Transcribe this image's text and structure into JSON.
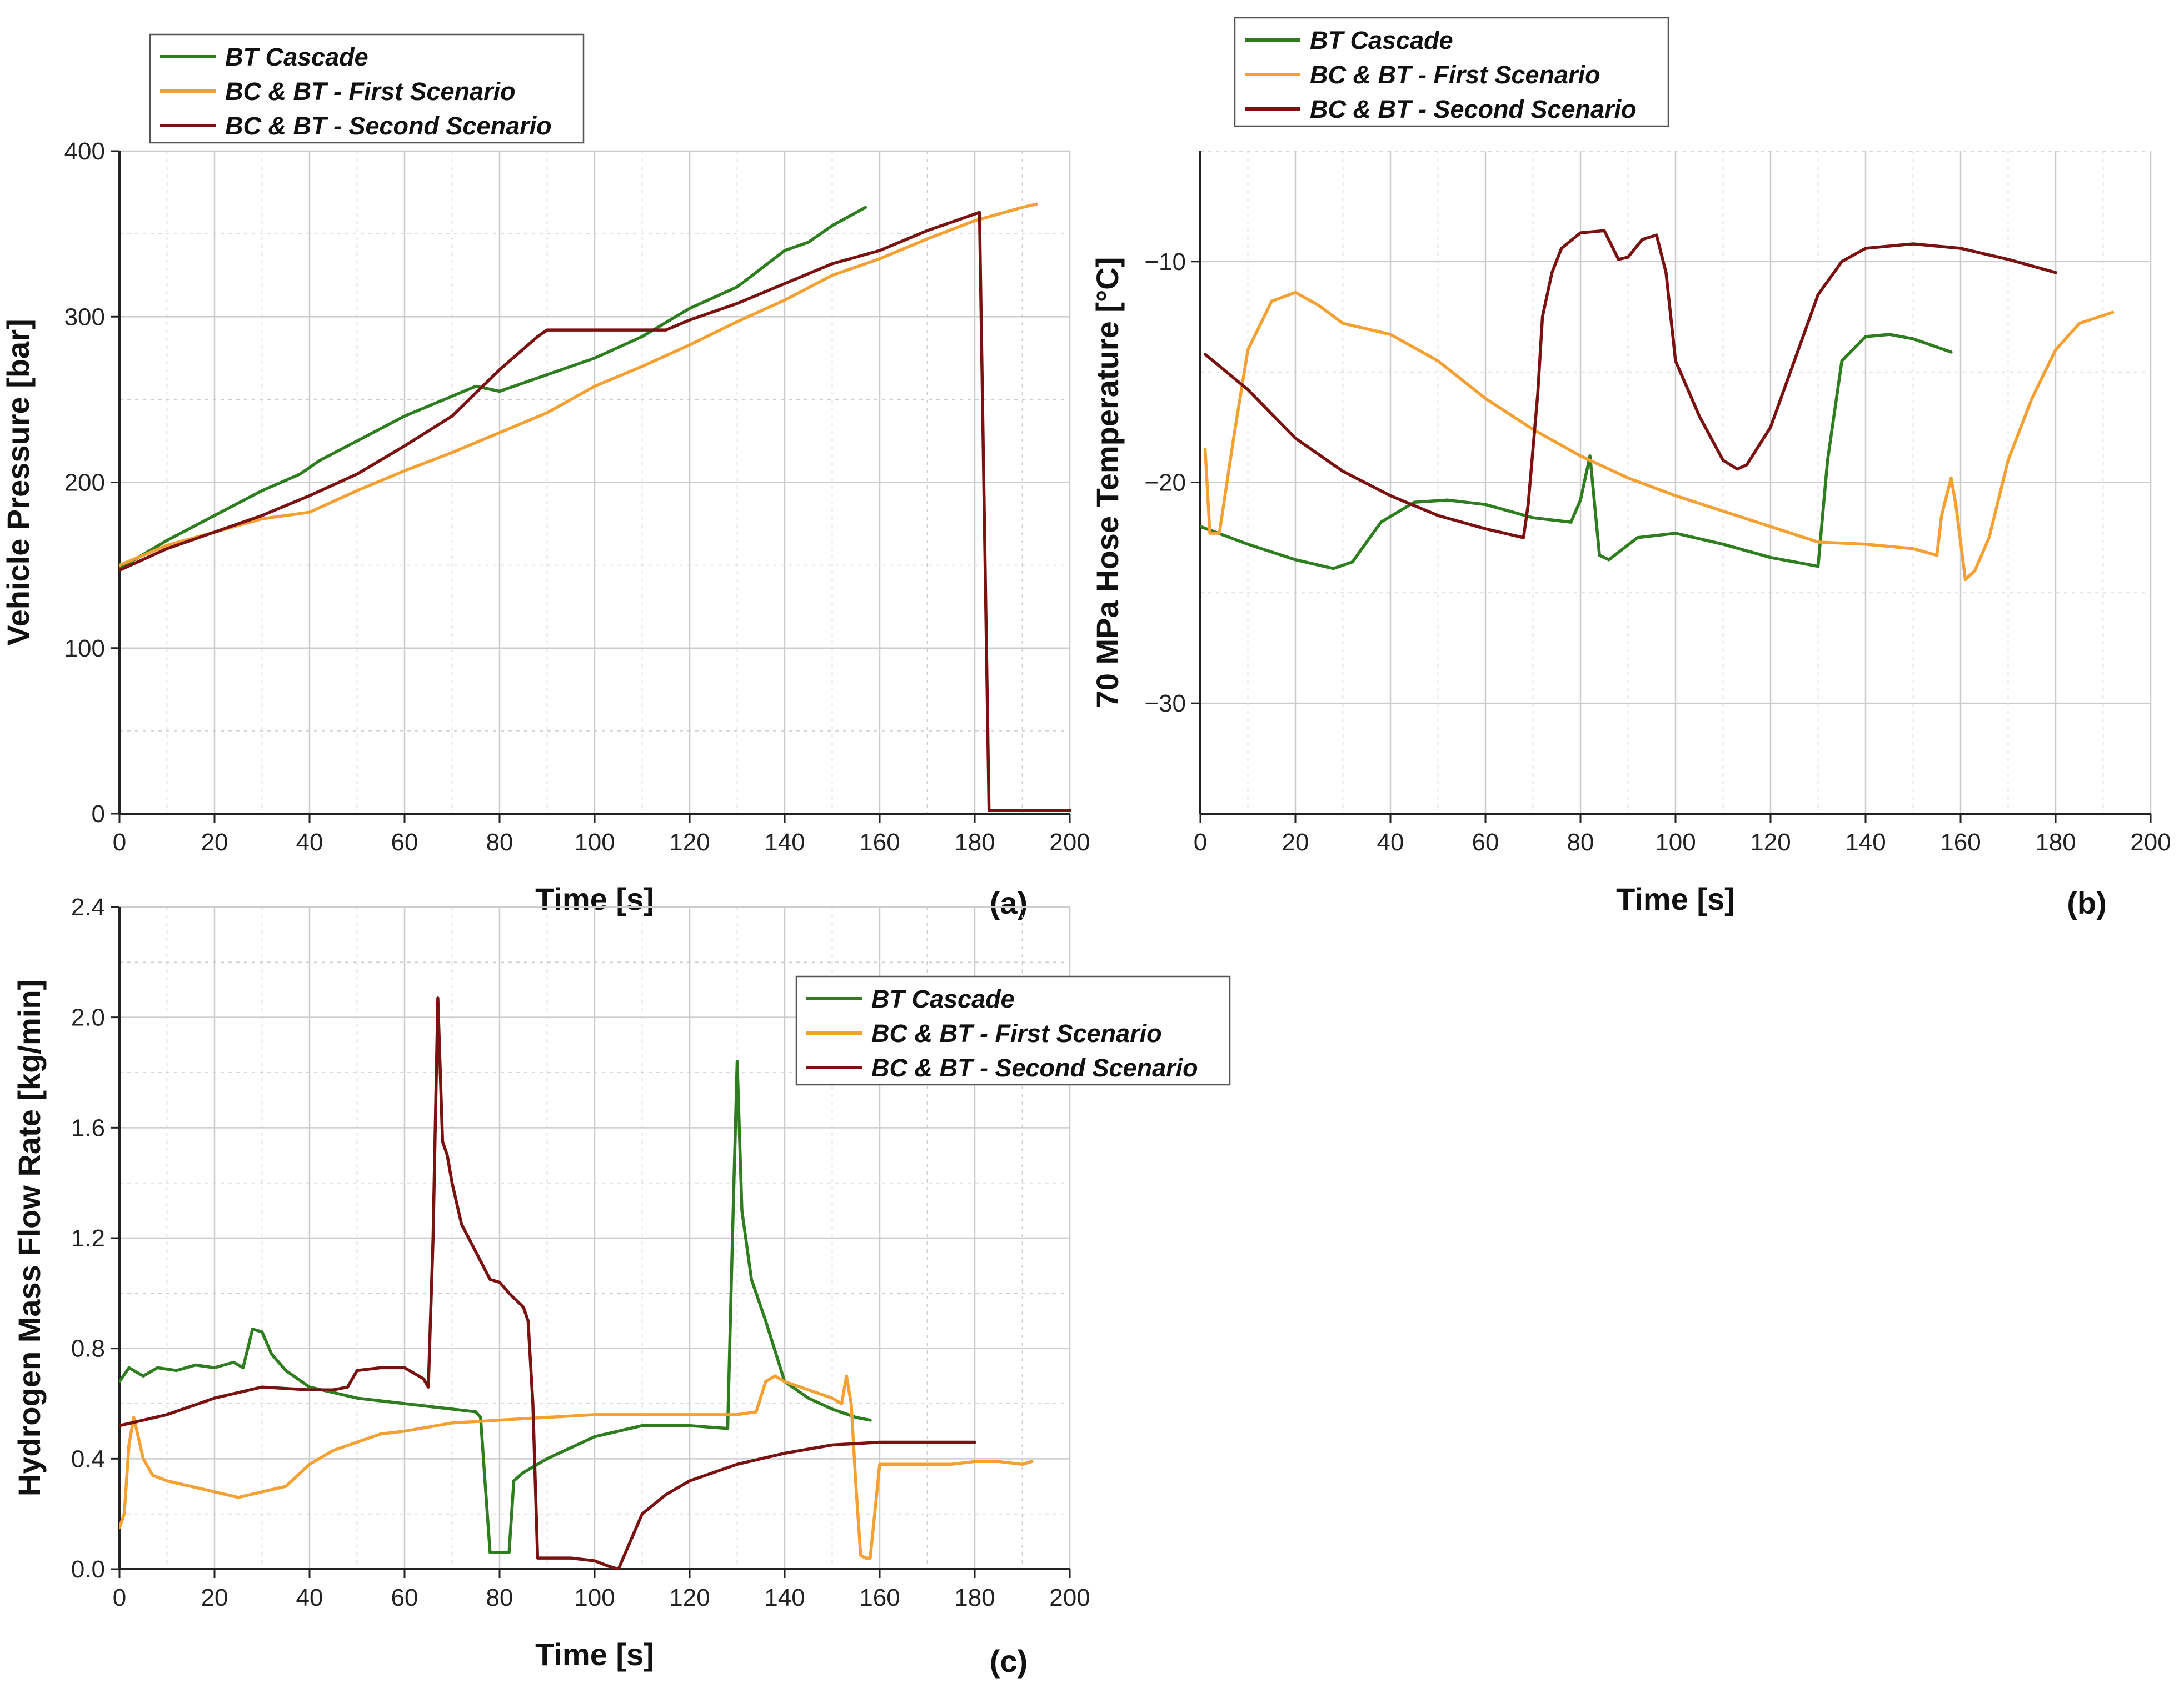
{
  "colors": {
    "bt_cascade": "#2e7d1f",
    "first_scenario": "#f5a033",
    "second_scenario": "#7b1212",
    "grid": "#cccccc",
    "axis": "#222222"
  },
  "chart_data": [
    {
      "type": "line",
      "panel": "(a)",
      "title": "",
      "xlabel": "Time [s]",
      "ylabel": "Vehicle Pressure [bar]",
      "xlim": [
        0,
        200
      ],
      "ylim": [
        0,
        400
      ],
      "xticks": [
        0,
        20,
        40,
        60,
        80,
        100,
        120,
        140,
        160,
        180,
        200
      ],
      "yticks": [
        0,
        100,
        200,
        300,
        400
      ],
      "ytick_labels": [
        "0",
        "100",
        "200",
        "300",
        "400"
      ],
      "grid": true,
      "legend_position": "top-left",
      "series": [
        {
          "name": "BT Cascade",
          "color_key": "bt_cascade",
          "x": [
            0,
            10,
            20,
            30,
            38,
            42,
            50,
            60,
            70,
            75,
            80,
            90,
            100,
            110,
            120,
            130,
            140,
            145,
            150,
            157
          ],
          "y": [
            148,
            165,
            180,
            195,
            205,
            213,
            225,
            240,
            252,
            258,
            255,
            265,
            275,
            288,
            305,
            318,
            340,
            345,
            355,
            366
          ]
        },
        {
          "name": "BC & BT - First Scenario",
          "color_key": "first_scenario",
          "x": [
            0,
            10,
            20,
            30,
            40,
            50,
            60,
            70,
            80,
            90,
            100,
            110,
            120,
            130,
            140,
            150,
            160,
            170,
            180,
            190,
            193
          ],
          "y": [
            150,
            162,
            170,
            178,
            182,
            195,
            207,
            218,
            230,
            242,
            258,
            270,
            283,
            297,
            310,
            325,
            335,
            347,
            358,
            366,
            368
          ]
        },
        {
          "name": "BC & BT - Second Scenario",
          "color_key": "second_scenario",
          "x": [
            0,
            10,
            20,
            30,
            40,
            50,
            60,
            70,
            80,
            88,
            90,
            100,
            110,
            115,
            120,
            130,
            140,
            150,
            160,
            170,
            180,
            181,
            183,
            200
          ],
          "y": [
            147,
            160,
            170,
            180,
            192,
            205,
            222,
            240,
            268,
            288,
            292,
            292,
            292,
            292,
            298,
            308,
            320,
            332,
            340,
            352,
            362,
            363,
            2,
            2
          ]
        }
      ]
    },
    {
      "type": "line",
      "panel": "(b)",
      "title": "",
      "xlabel": "Time [s]",
      "ylabel": "70 MPa Hose Temperature [°C]",
      "xlim": [
        0,
        200
      ],
      "ylim": [
        -35,
        -5
      ],
      "xticks": [
        0,
        20,
        40,
        60,
        80,
        100,
        120,
        140,
        160,
        180,
        200
      ],
      "yticks": [
        -30,
        -20,
        -10
      ],
      "ytick_labels": [
        "−30",
        "−20",
        "−10"
      ],
      "grid": true,
      "legend_position": "top-left",
      "series": [
        {
          "name": "BT Cascade",
          "color_key": "bt_cascade",
          "x": [
            0,
            10,
            20,
            28,
            32,
            38,
            45,
            52,
            60,
            70,
            78,
            80,
            82,
            84,
            86,
            92,
            100,
            110,
            120,
            130,
            132,
            135,
            140,
            145,
            150,
            158
          ],
          "y": [
            -22.0,
            -22.8,
            -23.5,
            -23.9,
            -23.6,
            -21.8,
            -20.9,
            -20.8,
            -21.0,
            -21.6,
            -21.8,
            -20.8,
            -18.8,
            -23.3,
            -23.5,
            -22.5,
            -22.3,
            -22.8,
            -23.4,
            -23.8,
            -19.0,
            -14.5,
            -13.4,
            -13.3,
            -13.5,
            -14.1
          ]
        },
        {
          "name": "BC & BT - First Scenario",
          "color_key": "first_scenario",
          "x": [
            1,
            2,
            4,
            7,
            10,
            15,
            20,
            25,
            30,
            40,
            50,
            60,
            70,
            80,
            90,
            100,
            110,
            120,
            130,
            140,
            150,
            155,
            156,
            158,
            159,
            161,
            163,
            166,
            170,
            175,
            180,
            185,
            192
          ],
          "y": [
            -18.5,
            -22.3,
            -22.3,
            -18.0,
            -14.0,
            -11.8,
            -11.4,
            -12.0,
            -12.8,
            -13.3,
            -14.5,
            -16.2,
            -17.6,
            -18.8,
            -19.8,
            -20.6,
            -21.3,
            -22.0,
            -22.7,
            -22.8,
            -23.0,
            -23.3,
            -21.5,
            -19.8,
            -21.0,
            -24.4,
            -24.0,
            -22.5,
            -19.0,
            -16.2,
            -14.0,
            -12.8,
            -12.3
          ]
        },
        {
          "name": "BC & BT - Second Scenario",
          "color_key": "second_scenario",
          "x": [
            1,
            10,
            20,
            30,
            40,
            50,
            60,
            68,
            69,
            71,
            72,
            74,
            76,
            80,
            85,
            88,
            90,
            93,
            96,
            98,
            100,
            103,
            105,
            110,
            113,
            115,
            120,
            125,
            130,
            135,
            140,
            150,
            160,
            170,
            180
          ],
          "y": [
            -14.2,
            -15.8,
            -18.0,
            -19.5,
            -20.6,
            -21.5,
            -22.1,
            -22.5,
            -21.0,
            -16.0,
            -12.5,
            -10.5,
            -9.4,
            -8.7,
            -8.6,
            -9.9,
            -9.8,
            -9.0,
            -8.8,
            -10.5,
            -14.5,
            -16.0,
            -17.0,
            -19.0,
            -19.4,
            -19.2,
            -17.5,
            -14.5,
            -11.5,
            -10.0,
            -9.4,
            -9.2,
            -9.4,
            -9.9,
            -10.5
          ]
        }
      ]
    },
    {
      "type": "line",
      "panel": "(c)",
      "title": "",
      "xlabel": "Time [s]",
      "ylabel": "Hydrogen Mass Flow Rate [kg/min]",
      "xlim": [
        0,
        200
      ],
      "ylim": [
        0.0,
        2.4
      ],
      "xticks": [
        0,
        20,
        40,
        60,
        80,
        100,
        120,
        140,
        160,
        180,
        200
      ],
      "yticks": [
        0.0,
        0.4,
        0.8,
        1.2,
        1.6,
        2.0,
        2.4
      ],
      "ytick_labels": [
        "0.0",
        "0.4",
        "0.8",
        "1.2",
        "1.6",
        "2.0",
        "2.4"
      ],
      "grid": true,
      "legend_position": "top-right",
      "series": [
        {
          "name": "BT Cascade",
          "color_key": "bt_cascade",
          "x": [
            0,
            2,
            5,
            8,
            12,
            16,
            20,
            24,
            26,
            28,
            30,
            32,
            35,
            40,
            45,
            50,
            60,
            70,
            75,
            76,
            77,
            78,
            80,
            82,
            83,
            85,
            90,
            100,
            110,
            120,
            128,
            129,
            130,
            131,
            133,
            136,
            140,
            145,
            150,
            155,
            158
          ],
          "y": [
            0.68,
            0.73,
            0.7,
            0.73,
            0.72,
            0.74,
            0.73,
            0.75,
            0.73,
            0.87,
            0.86,
            0.78,
            0.72,
            0.66,
            0.64,
            0.62,
            0.6,
            0.58,
            0.57,
            0.55,
            0.3,
            0.06,
            0.06,
            0.06,
            0.32,
            0.35,
            0.4,
            0.48,
            0.52,
            0.52,
            0.51,
            1.2,
            1.84,
            1.3,
            1.05,
            0.9,
            0.68,
            0.62,
            0.58,
            0.55,
            0.54
          ]
        },
        {
          "name": "BC & BT - First Scenario",
          "color_key": "first_scenario",
          "x": [
            0,
            1,
            2,
            3,
            5,
            7,
            10,
            15,
            20,
            25,
            30,
            35,
            40,
            45,
            50,
            55,
            60,
            70,
            80,
            90,
            100,
            110,
            120,
            130,
            134,
            136,
            138,
            140,
            145,
            150,
            152,
            153,
            154,
            155,
            156,
            157,
            158,
            160,
            165,
            170,
            175,
            180,
            185,
            190,
            192
          ],
          "y": [
            0.15,
            0.2,
            0.45,
            0.55,
            0.4,
            0.34,
            0.32,
            0.3,
            0.28,
            0.26,
            0.28,
            0.3,
            0.38,
            0.43,
            0.46,
            0.49,
            0.5,
            0.53,
            0.54,
            0.55,
            0.56,
            0.56,
            0.56,
            0.56,
            0.57,
            0.68,
            0.7,
            0.68,
            0.65,
            0.62,
            0.6,
            0.7,
            0.6,
            0.3,
            0.05,
            0.04,
            0.04,
            0.38,
            0.38,
            0.38,
            0.38,
            0.39,
            0.39,
            0.38,
            0.39
          ]
        },
        {
          "name": "BC & BT - Second Scenario",
          "color_key": "second_scenario",
          "x": [
            0,
            10,
            20,
            30,
            40,
            45,
            48,
            50,
            55,
            60,
            64,
            65,
            66,
            67,
            68,
            69,
            70,
            72,
            75,
            78,
            80,
            82,
            85,
            86,
            87,
            88,
            90,
            95,
            100,
            103,
            105,
            106,
            108,
            110,
            115,
            120,
            130,
            140,
            150,
            160,
            170,
            180
          ],
          "y": [
            0.52,
            0.56,
            0.62,
            0.66,
            0.65,
            0.65,
            0.66,
            0.72,
            0.73,
            0.73,
            0.69,
            0.66,
            1.2,
            2.07,
            1.55,
            1.5,
            1.4,
            1.25,
            1.15,
            1.05,
            1.04,
            1.0,
            0.95,
            0.9,
            0.6,
            0.04,
            0.04,
            0.04,
            0.03,
            0.01,
            0.0,
            0.04,
            0.12,
            0.2,
            0.27,
            0.32,
            0.38,
            0.42,
            0.45,
            0.46,
            0.46,
            0.46
          ]
        }
      ]
    }
  ]
}
